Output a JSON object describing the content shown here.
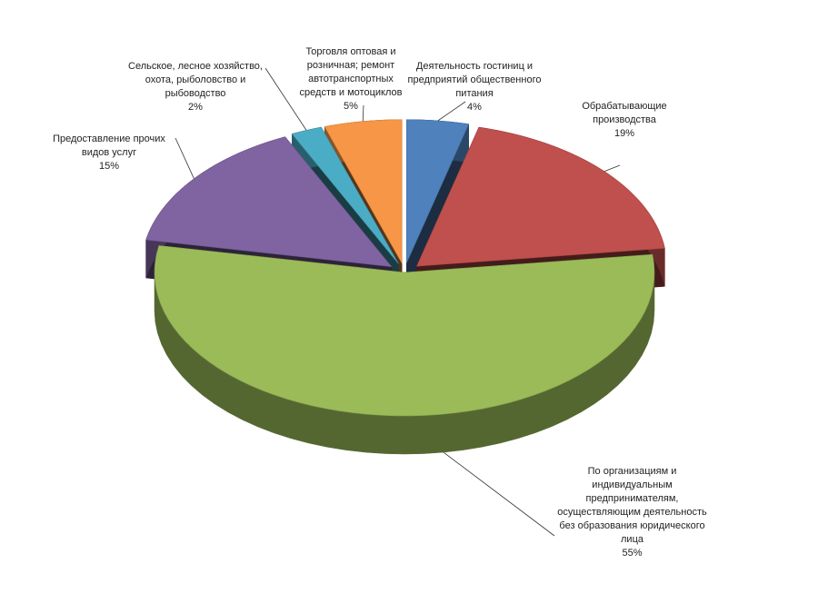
{
  "chart_data": {
    "type": "pie",
    "style": "3d-exploded",
    "title": "",
    "slices": [
      {
        "name": "Деятельность  гостиниц и предприятий общественного питания",
        "value": 4,
        "pct_label": "4%",
        "color": "#4F81BD"
      },
      {
        "name": "Обрабатывающие производства",
        "value": 19,
        "pct_label": "19%",
        "color": "#C0504D"
      },
      {
        "name": "По организациям и индивидуальным предпринимателям, осуществляющим деятельность без образования юридического лица",
        "value": 55,
        "pct_label": "55%",
        "color": "#9BBB59"
      },
      {
        "name": "Предоставление прочих видов услуг",
        "value": 15,
        "pct_label": "15%",
        "color": "#8064A2"
      },
      {
        "name": "Сельское, лесное хозяйство, охота, рыболовство и рыбоводство",
        "value": 2,
        "pct_label": "2%",
        "color": "#4BACC6"
      },
      {
        "name": "Торговля оптовая и розничная; ремонт автотранспортных средств и мотоциклов",
        "value": 5,
        "pct_label": "5%",
        "color": "#F79646"
      }
    ]
  }
}
